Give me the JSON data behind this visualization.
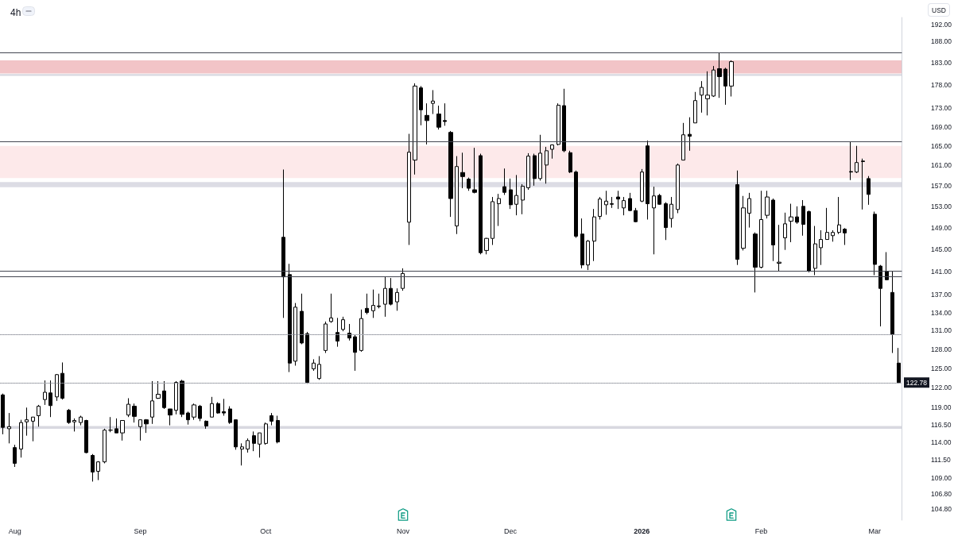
{
  "chart_data": {
    "type": "candlestick",
    "title": "4h",
    "ylabel": "USD",
    "categories": [
      null,
      null,
      "Aug",
      null,
      null,
      null,
      null,
      null,
      null,
      null,
      null,
      null,
      null,
      null,
      null,
      null,
      null,
      null,
      null,
      null,
      null,
      null,
      null,
      "Sep",
      null,
      null,
      null,
      null,
      null,
      null,
      null,
      null,
      null,
      null,
      null,
      null,
      null,
      null,
      null,
      null,
      null,
      null,
      null,
      null,
      "Oct",
      null,
      null,
      null,
      null,
      null,
      null,
      null,
      null,
      null,
      null,
      null,
      null,
      null,
      null,
      null,
      null,
      null,
      null,
      null,
      null,
      null,
      null,
      "Nov",
      null,
      null,
      null,
      null,
      null,
      null,
      null,
      null,
      null,
      null,
      null,
      null,
      null,
      null,
      null,
      null,
      null,
      "Dec",
      null,
      null,
      null,
      null,
      null,
      null,
      null,
      null,
      null,
      null,
      null,
      null,
      null,
      null,
      null,
      null,
      null,
      null,
      null,
      null,
      null,
      "2026",
      null,
      null,
      null,
      null,
      null,
      null,
      null,
      null,
      null,
      null,
      null,
      null,
      null,
      null,
      null,
      null,
      null,
      null,
      null,
      "Feb",
      null,
      null,
      null,
      null,
      null,
      null,
      null,
      null,
      null,
      null,
      null,
      null,
      null,
      null,
      null,
      null,
      null,
      null,
      "Mar",
      null,
      null,
      null,
      null
    ],
    "ohlc": [
      [
        120.9,
        121.1,
        115.1,
        116.1
      ],
      [
        115.9,
        118.2,
        113.8,
        116.2
      ],
      [
        113.2,
        113.6,
        110.5,
        111.0
      ],
      [
        113.0,
        117.2,
        111.8,
        116.8
      ],
      [
        116.9,
        119.0,
        114.9,
        117.2
      ],
      [
        117.0,
        117.6,
        114.1,
        117.6
      ],
      [
        117.8,
        119.4,
        116.2,
        119.2
      ],
      [
        120.2,
        123.1,
        119.4,
        121.3
      ],
      [
        121.2,
        123.1,
        117.6,
        119.3
      ],
      [
        120.6,
        124.1,
        120.0,
        124.0
      ],
      [
        124.2,
        125.9,
        120.2,
        120.4
      ],
      [
        118.6,
        118.8,
        116.6,
        116.8
      ],
      [
        116.9,
        117.4,
        115.5,
        117.1
      ],
      [
        116.8,
        117.8,
        116.4,
        117.6
      ],
      [
        117.1,
        117.2,
        112.4,
        112.5
      ],
      [
        112.1,
        112.3,
        108.5,
        109.8
      ],
      [
        109.9,
        111.3,
        108.7,
        111.2
      ],
      [
        111.2,
        115.9,
        111.0,
        115.7
      ],
      [
        115.7,
        117.6,
        115.4,
        115.7
      ],
      [
        115.9,
        117.4,
        115.3,
        115.3
      ],
      [
        115.3,
        117.1,
        114.2,
        117.1
      ],
      [
        117.9,
        120.4,
        117.6,
        119.5
      ],
      [
        119.2,
        119.6,
        116.8,
        117.7
      ],
      [
        116.2,
        117.2,
        114.2,
        117.2
      ],
      [
        117.2,
        117.3,
        115.3,
        116.6
      ],
      [
        117.6,
        123.0,
        116.6,
        120.0
      ],
      [
        120.4,
        123.0,
        120.3,
        121.0
      ],
      [
        121.5,
        123.0,
        118.8,
        119.0
      ],
      [
        118.8,
        118.8,
        116.4,
        117.9
      ],
      [
        118.6,
        123.0,
        118.0,
        122.8
      ],
      [
        123.0,
        123.2,
        117.6,
        118.0
      ],
      [
        118.2,
        118.4,
        116.5,
        117.2
      ],
      [
        117.6,
        119.6,
        117.2,
        119.4
      ],
      [
        119.2,
        119.4,
        117.0,
        117.4
      ],
      [
        117.0,
        117.1,
        115.9,
        116.3
      ],
      [
        117.6,
        120.6,
        117.6,
        119.6
      ],
      [
        119.6,
        119.8,
        118.1,
        118.2
      ],
      [
        118.4,
        120.3,
        117.8,
        118.2
      ],
      [
        118.8,
        119.2,
        116.6,
        116.8
      ],
      [
        117.2,
        117.2,
        112.9,
        113.3
      ],
      [
        113.0,
        113.8,
        110.7,
        113.3
      ],
      [
        113.0,
        114.5,
        112.5,
        114.2
      ],
      [
        114.9,
        115.5,
        112.7,
        113.8
      ],
      [
        113.7,
        115.3,
        111.8,
        115.3
      ],
      [
        113.8,
        116.8,
        113.6,
        116.6
      ],
      [
        117.8,
        118.2,
        116.4,
        117.0
      ],
      [
        117.1,
        117.8,
        113.8,
        114.0
      ],
      [
        147.2,
        160.2,
        133.1,
        140.1
      ],
      [
        140.5,
        142.4,
        124.4,
        125.8
      ],
      [
        126.1,
        135.6,
        125.4,
        134.9
      ],
      [
        134.2,
        137.2,
        128.8,
        129.0
      ],
      [
        130.5,
        130.8,
        122.6,
        122.8
      ],
      [
        124.9,
        126.4,
        124.6,
        125.8
      ],
      [
        123.4,
        126.9,
        123.2,
        125.6
      ],
      [
        127.8,
        132.5,
        127.4,
        132.1
      ],
      [
        132.5,
        137.2,
        132.3,
        133.1
      ],
      [
        130.7,
        133.1,
        128.4,
        129.3
      ],
      [
        131.2,
        133.3,
        130.9,
        132.8
      ],
      [
        130.6,
        132.1,
        129.4,
        129.8
      ],
      [
        130.0,
        130.4,
        124.6,
        127.5
      ],
      [
        127.8,
        134.5,
        127.6,
        133.0
      ],
      [
        134.7,
        137.2,
        133.7,
        134.0
      ],
      [
        134.3,
        137.9,
        133.1,
        135.2
      ],
      [
        135.0,
        137.2,
        134.7,
        135.1
      ],
      [
        135.4,
        140.2,
        133.3,
        138.1
      ],
      [
        138.1,
        139.9,
        135.2,
        135.4
      ],
      [
        135.8,
        138.1,
        134.3,
        137.4
      ],
      [
        138.1,
        141.6,
        137.7,
        140.7
      ],
      [
        150.0,
        167.5,
        145.8,
        163.7
      ],
      [
        162.1,
        178.4,
        159.2,
        177.8
      ],
      [
        177.4,
        177.8,
        169.3,
        172.6
      ],
      [
        171.4,
        174.0,
        165.3,
        170.3
      ],
      [
        174.0,
        176.9,
        171.7,
        174.5
      ],
      [
        171.7,
        173.5,
        168.4,
        168.9
      ],
      [
        170.3,
        174.0,
        169.2,
        170.1
      ],
      [
        167.8,
        168.1,
        151.0,
        154.5
      ],
      [
        149.3,
        162.9,
        147.8,
        160.8
      ],
      [
        159.6,
        163.6,
        156.5,
        158.8
      ],
      [
        158.3,
        158.6,
        156.0,
        156.5
      ],
      [
        156.2,
        164.6,
        155.5,
        155.7
      ],
      [
        163.0,
        163.4,
        144.1,
        144.4
      ],
      [
        144.8,
        147.1,
        144.1,
        147.0
      ],
      [
        147.0,
        154.8,
        145.8,
        153.9
      ],
      [
        153.5,
        155.4,
        149.3,
        154.5
      ],
      [
        156.8,
        160.4,
        155.2,
        155.7
      ],
      [
        156.2,
        158.4,
        152.5,
        153.3
      ],
      [
        153.4,
        159.1,
        151.3,
        155.1
      ],
      [
        154.2,
        157.3,
        151.5,
        156.9
      ],
      [
        156.6,
        163.5,
        156.2,
        162.9
      ],
      [
        163.0,
        163.4,
        157.0,
        158.4
      ],
      [
        158.4,
        167.3,
        158.0,
        163.5
      ],
      [
        161.1,
        164.8,
        157.4,
        164.0
      ],
      [
        164.3,
        165.3,
        162.4,
        165.2
      ],
      [
        165.3,
        174.0,
        165.1,
        173.6
      ],
      [
        173.5,
        177.2,
        163.7,
        164.0
      ],
      [
        163.6,
        164.0,
        159.5,
        159.7
      ],
      [
        159.7,
        160.0,
        147.1,
        147.4
      ],
      [
        147.8,
        150.7,
        141.6,
        142.2
      ],
      [
        142.2,
        146.7,
        141.3,
        146.5
      ],
      [
        146.5,
        152.5,
        142.9,
        151.0
      ],
      [
        151.1,
        154.8,
        150.5,
        154.4
      ],
      [
        153.3,
        156.0,
        151.4,
        154.0
      ],
      [
        153.5,
        154.8,
        152.7,
        153.4
      ],
      [
        154.8,
        156.0,
        152.5,
        154.4
      ],
      [
        152.7,
        154.8,
        151.3,
        154.1
      ],
      [
        154.5,
        155.6,
        152.1,
        152.2
      ],
      [
        152.2,
        152.7,
        150.0,
        150.1
      ],
      [
        154.0,
        160.3,
        153.8,
        159.7
      ],
      [
        165.0,
        166.1,
        150.5,
        153.5
      ],
      [
        152.7,
        156.8,
        144.1,
        155.0
      ],
      [
        155.1,
        155.4,
        153.3,
        153.4
      ],
      [
        153.5,
        153.8,
        146.7,
        149.0
      ],
      [
        150.7,
        154.8,
        149.0,
        153.4
      ],
      [
        152.4,
        161.4,
        151.7,
        161.1
      ],
      [
        162.1,
        169.8,
        162.1,
        167.3
      ],
      [
        167.4,
        171.0,
        164.0,
        167.0
      ],
      [
        169.8,
        176.5,
        169.8,
        174.6
      ],
      [
        175.8,
        178.9,
        172.0,
        177.5
      ],
      [
        175.0,
        181.1,
        171.4,
        175.8
      ],
      [
        175.6,
        182.3,
        175.4,
        181.4
      ],
      [
        181.7,
        185.3,
        175.2,
        179.9
      ],
      [
        181.6,
        181.9,
        173.7,
        177.8
      ],
      [
        177.8,
        183.6,
        175.5,
        183.3
      ],
      [
        157.2,
        160.0,
        142.2,
        143.2
      ],
      [
        145.2,
        155.0,
        144.8,
        152.7
      ],
      [
        151.7,
        155.6,
        149.0,
        154.5
      ],
      [
        147.8,
        148.1,
        137.4,
        141.8
      ],
      [
        141.8,
        156.0,
        141.6,
        150.5
      ],
      [
        151.3,
        156.0,
        150.7,
        154.8
      ],
      [
        154.2,
        154.5,
        142.9,
        145.8
      ],
      [
        142.5,
        149.5,
        141.1,
        142.7
      ],
      [
        147.1,
        151.8,
        144.9,
        149.7
      ],
      [
        150.2,
        153.5,
        146.3,
        151.0
      ],
      [
        151.0,
        153.0,
        149.7,
        150.0
      ],
      [
        153.0,
        154.2,
        147.5,
        149.6
      ],
      [
        152.0,
        152.2,
        140.9,
        141.1
      ],
      [
        141.6,
        149.3,
        140.4,
        146.0
      ],
      [
        145.3,
        148.5,
        142.2,
        146.8
      ],
      [
        146.8,
        152.7,
        146.8,
        148.1
      ],
      [
        147.5,
        148.5,
        146.4,
        148.1
      ],
      [
        148.1,
        154.8,
        147.8,
        149.5
      ],
      [
        148.7,
        148.9,
        145.8,
        148.0
      ],
      [
        159.8,
        165.9,
        158.1,
        159.7
      ],
      [
        159.7,
        165.0,
        159.5,
        161.6
      ],
      [
        161.9,
        162.4,
        152.4,
        161.8
      ],
      [
        158.4,
        158.9,
        153.3,
        155.3
      ],
      [
        151.5,
        152.0,
        140.4,
        142.3
      ],
      [
        142.0,
        142.2,
        131.7,
        138.1
      ],
      [
        141.1,
        144.5,
        139.5,
        139.6
      ],
      [
        137.4,
        141.1,
        127.4,
        130.4
      ],
      [
        125.8,
        128.2,
        122.7,
        122.78
      ]
    ],
    "color": "#000000",
    "log": true,
    "ylim": [
      103.4,
      193.7
    ],
    "yticks": [
      {
        "value": 192,
        "label": "192.00"
      },
      {
        "value": 188,
        "label": "188.00"
      },
      {
        "value": 183,
        "label": "183.00"
      },
      {
        "value": 178,
        "label": "178.00"
      },
      {
        "value": 173,
        "label": "173.00"
      },
      {
        "value": 169,
        "label": "169.00"
      },
      {
        "value": 165,
        "label": "165.00"
      },
      {
        "value": 161,
        "label": "161.00"
      },
      {
        "value": 157,
        "label": "157.00"
      },
      {
        "value": 153,
        "label": "153.00"
      },
      {
        "value": 149,
        "label": "149.00"
      },
      {
        "value": 145,
        "label": "145.00"
      },
      {
        "value": 141,
        "label": "141.00"
      },
      {
        "value": 137,
        "label": "137.00"
      },
      {
        "value": 134,
        "label": "134.00"
      },
      {
        "value": 131,
        "label": "131.00"
      },
      {
        "value": 128,
        "label": "128.00"
      },
      {
        "value": 125,
        "label": "125.00"
      },
      {
        "value": 122,
        "label": "122.00"
      },
      {
        "value": 119,
        "label": "119.00"
      },
      {
        "value": 116.5,
        "label": "116.50"
      },
      {
        "value": 114,
        "label": "114.00"
      },
      {
        "value": 111.5,
        "label": "111.50"
      },
      {
        "value": 109,
        "label": "109.00"
      },
      {
        "value": 106.8,
        "label": "106.80"
      },
      {
        "value": 104.8,
        "label": "104.80"
      }
    ],
    "grid": false,
    "ref_lines": [
      {
        "axis": "y",
        "value": 185.4,
        "color": "#434651",
        "line_style": "solid"
      },
      {
        "axis": "y",
        "value": 165.9,
        "color": "#434651",
        "line_style": "solid"
      },
      {
        "axis": "y",
        "value": 141.1,
        "color": "#434651",
        "line_style": "solid"
      },
      {
        "axis": "y",
        "value": 140.2,
        "color": "#434651",
        "line_style": "solid"
      },
      {
        "axis": "y",
        "value": 130.4,
        "color": "#9598a1",
        "line_style": "dotted"
      },
      {
        "axis": "y",
        "value": 122.78,
        "label": "122.78",
        "color": "#9598a1",
        "line_style": "dotted"
      }
    ],
    "bands": [
      {
        "axis": "y",
        "from": 180.6,
        "to": 183.6,
        "color": "#f2c4c7"
      },
      {
        "axis": "y",
        "from": 180.1,
        "to": 180.5,
        "color": "#d8d8e0"
      },
      {
        "axis": "y",
        "from": 158.5,
        "to": 165.0,
        "color": "#fde9ea"
      },
      {
        "axis": "y",
        "from": 156.7,
        "to": 157.7,
        "color": "#dcdce4"
      },
      {
        "axis": "y",
        "from": 115.9,
        "to": 116.3,
        "color": "#d8d8e0"
      }
    ]
  }
}
